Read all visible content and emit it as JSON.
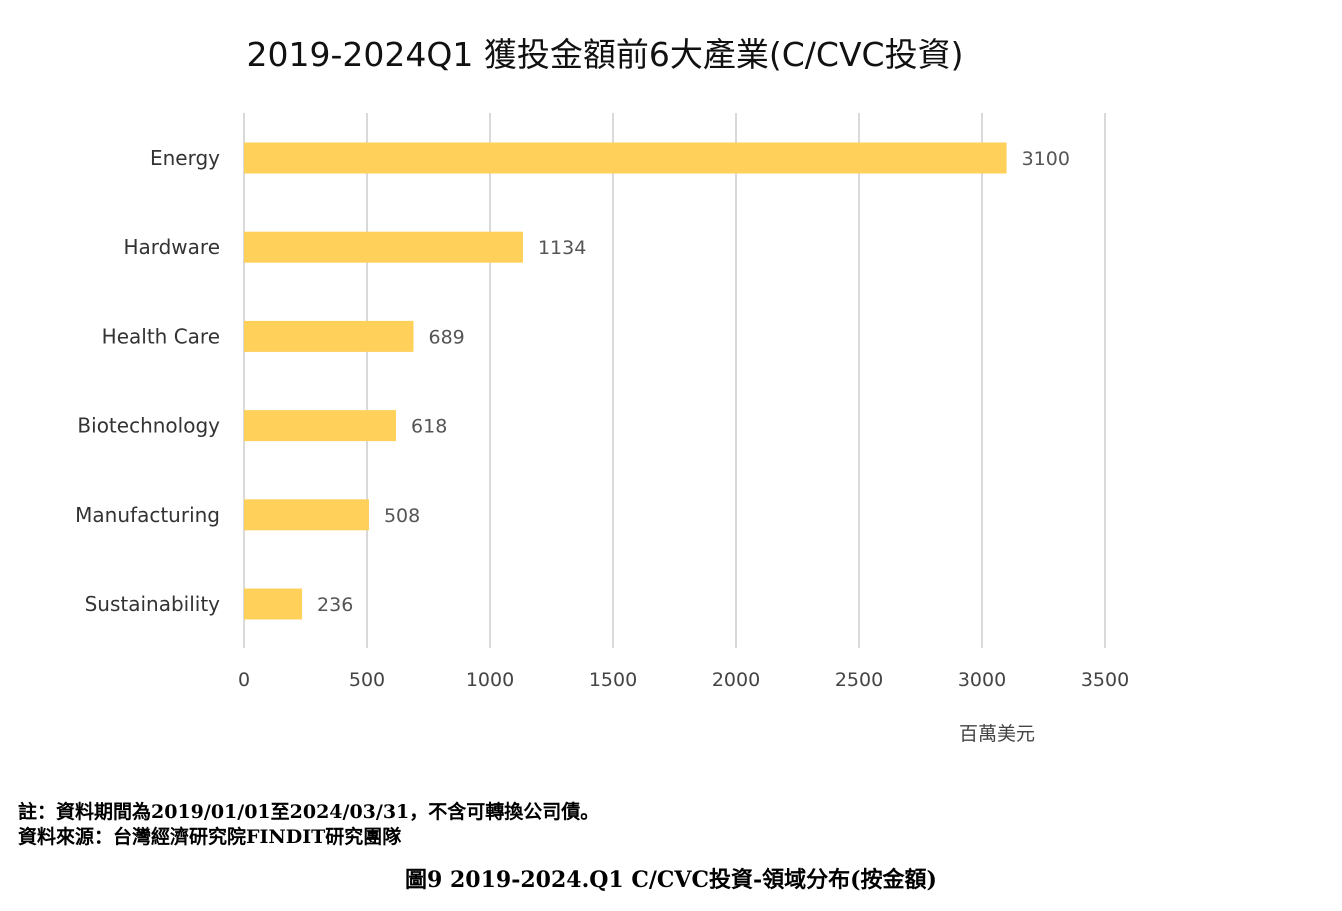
{
  "chart_data": {
    "type": "bar",
    "orientation": "horizontal",
    "title": "2019-2024Q1 獲投金額前6大產業(C/CVC投資)",
    "categories": [
      "Energy",
      "Hardware",
      "Health Care",
      "Biotechnology",
      "Manufacturing",
      "Sustainability"
    ],
    "values": [
      3100,
      1134,
      689,
      618,
      508,
      236
    ],
    "xlim": [
      0,
      3500
    ],
    "xticks": [
      0,
      500,
      1000,
      1500,
      2000,
      2500,
      3000,
      3500
    ],
    "unit_label": "百萬美元",
    "bar_color": "#FFD05A",
    "grid": true,
    "legend": "none"
  },
  "notes": {
    "note": "註：資料期間為2019/01/01至2024/03/31，不含可轉換公司債。",
    "source": "資料來源：台灣經濟研究院FINDIT研究團隊"
  },
  "caption": "圖9  2019-2024.Q1 C/CVC投資-領域分布(按金額)"
}
